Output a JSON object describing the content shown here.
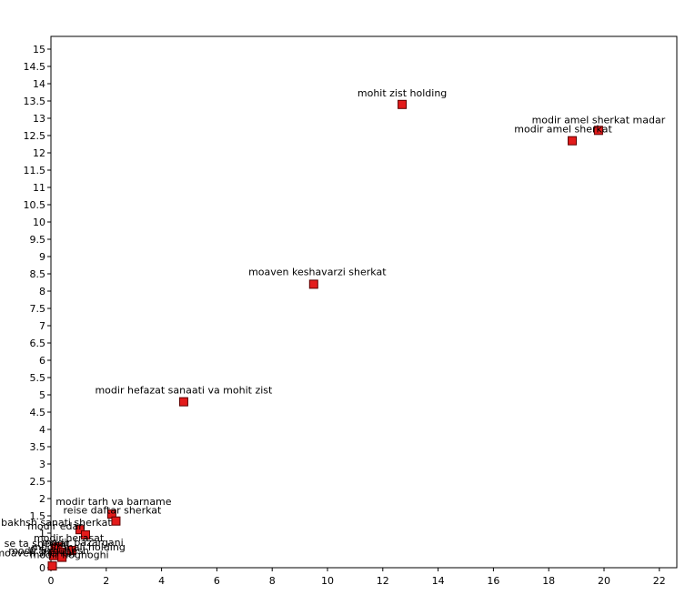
{
  "chart_data": {
    "type": "scatter",
    "title": "",
    "xlabel": "",
    "ylabel": "",
    "xlim": [
      0,
      23
    ],
    "ylim": [
      0,
      15.5
    ],
    "x_ticks": [
      0,
      2,
      4,
      6,
      8,
      10,
      12,
      14,
      16,
      18,
      20,
      22
    ],
    "y_ticks": [
      0,
      0.5,
      1,
      1.5,
      2,
      2.5,
      3,
      3.5,
      4,
      4.5,
      5,
      5.5,
      6,
      6.5,
      7,
      7.5,
      8,
      8.5,
      9,
      9.5,
      10,
      10.5,
      11,
      11.5,
      12,
      12.5,
      13,
      13.5,
      14,
      14.5,
      15
    ],
    "grid": false,
    "marker_color": "#e31b1b",
    "marker_edge_color": "#5a0000",
    "points": [
      {
        "label": "mohit zist holding",
        "x": 12.7,
        "y": 13.4
      },
      {
        "label": "modir amel sherkat madar",
        "x": 19.8,
        "y": 12.65
      },
      {
        "label": "modir amel sherkat",
        "x": 18.85,
        "y": 12.35
      },
      {
        "label": "moaven keshavarzi  sherkat",
        "x": 9.5,
        "y": 8.2
      },
      {
        "label": "modir hefazat sanaati va mohit zist",
        "x": 4.8,
        "y": 4.8
      },
      {
        "label": "modir tarh va barname",
        "x": 2.2,
        "y": 1.55
      },
      {
        "label": "reise daftar sherkat",
        "x": 2.35,
        "y": 1.35
      },
      {
        "label": "moaven bakhsh sanati sherkat",
        "x": 1.05,
        "y": 1.1
      },
      {
        "label": "modir edari",
        "x": 1.25,
        "y": 0.95
      },
      {
        "label": "modir herasat",
        "x": 0.25,
        "y": 0.6
      },
      {
        "label": "modir bazargani",
        "x": 0.75,
        "y": 0.5
      },
      {
        "label": "se ta sherkat",
        "x": 0.15,
        "y": 0.55
      },
      {
        "label": "modir mali holding",
        "x": 0.4,
        "y": 0.45
      },
      {
        "label": "moaven sherkat",
        "x": 0.1,
        "y": 0.35
      },
      {
        "label": "modir hoghoghi",
        "x": 0.4,
        "y": 0.3
      },
      {
        "label": "modir pzhuhesh",
        "x": 0.05,
        "y": 0.05
      }
    ],
    "label_offsets": []
  }
}
